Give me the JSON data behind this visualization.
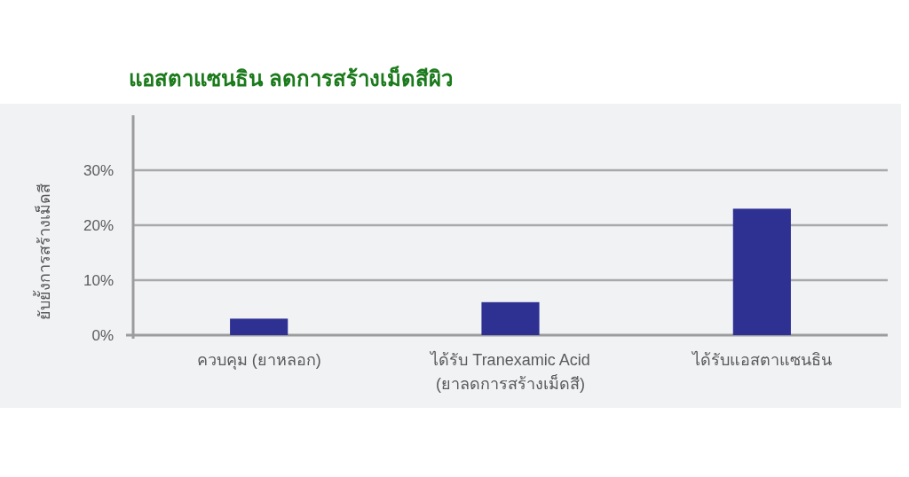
{
  "chart_data": {
    "type": "bar",
    "title": "แอสตาแซนธิน ลดการสร้างเม็ดสีผิว",
    "ylabel": "ยับยั้งการสร้างเม็ดสี",
    "categories": [
      "ควบคุม (ยาหลอก)",
      "ได้รับ Tranexamic Acid (ยาลดการสร้างเม็ดสี)",
      "ได้รับแอสตาแซนธิน"
    ],
    "values": [
      3,
      6,
      23
    ],
    "color": "#2e3192",
    "ylim": [
      0,
      40
    ],
    "yticks": [
      {
        "value": 0,
        "label": "0%"
      },
      {
        "value": 10,
        "label": "10%"
      },
      {
        "value": 20,
        "label": "20%"
      },
      {
        "value": 30,
        "label": "30%"
      }
    ],
    "grid": "y"
  }
}
